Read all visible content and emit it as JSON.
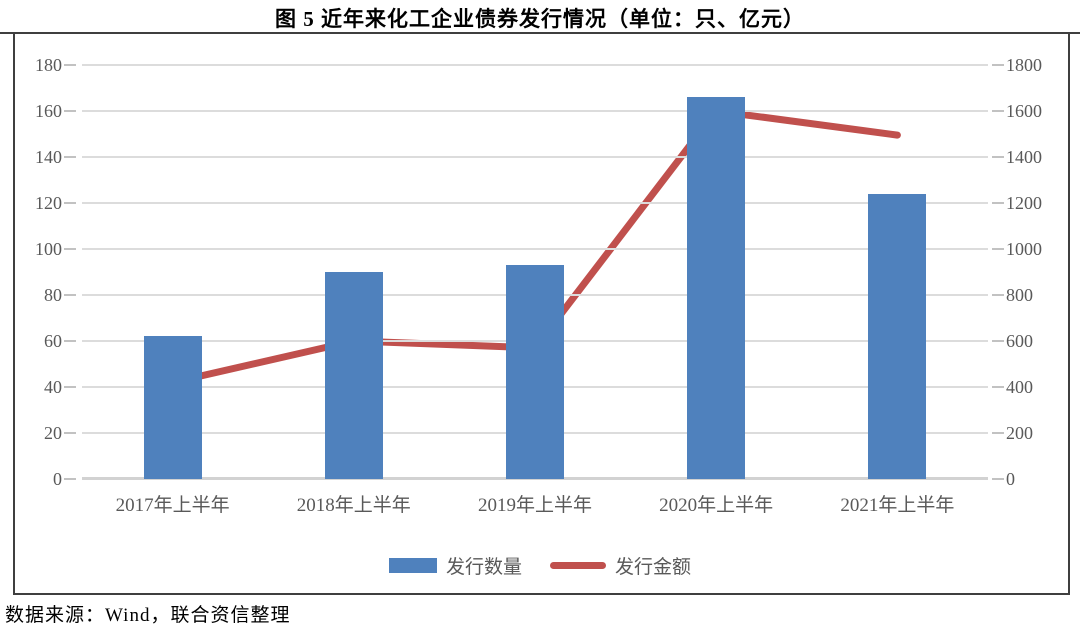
{
  "header": {
    "title": "图 5  近年来化工企业债券发行情况（单位：只、亿元）"
  },
  "footer": {
    "source": "数据来源：Wind，联合资信整理"
  },
  "colors": {
    "bar": "#4F81BD",
    "line": "#C0504D",
    "grid": "#DCDCDC",
    "axis_text": "#595959",
    "frame": "#3F3F3F"
  },
  "chart_data": {
    "type": "bar",
    "subtype": "combo-bar-line-dual-axis",
    "title": "图 5  近年来化工企业债券发行情况（单位：只、亿元）",
    "categories": [
      "2017年上半年",
      "2018年上半年",
      "2019年上半年",
      "2020年上半年",
      "2021年上半年"
    ],
    "series": [
      {
        "name": "发行数量",
        "type": "bar",
        "axis": "left",
        "unit": "只",
        "color": "#4F81BD",
        "values": [
          62,
          90,
          93,
          166,
          124
        ]
      },
      {
        "name": "发行金额",
        "type": "line",
        "axis": "right",
        "unit": "亿元",
        "color": "#C0504D",
        "values": [
          420,
          600,
          570,
          1600,
          1495
        ]
      }
    ],
    "axes": {
      "left": {
        "min": 0,
        "max": 180,
        "ticks": [
          0,
          20,
          40,
          60,
          80,
          100,
          120,
          140,
          160,
          180
        ]
      },
      "right": {
        "min": 0,
        "max": 1800,
        "ticks": [
          0,
          200,
          400,
          600,
          800,
          1000,
          1200,
          1400,
          1600,
          1800
        ]
      }
    },
    "grid": true,
    "legend_position": "bottom",
    "source_note": "数据来源：Wind，联合资信整理"
  }
}
